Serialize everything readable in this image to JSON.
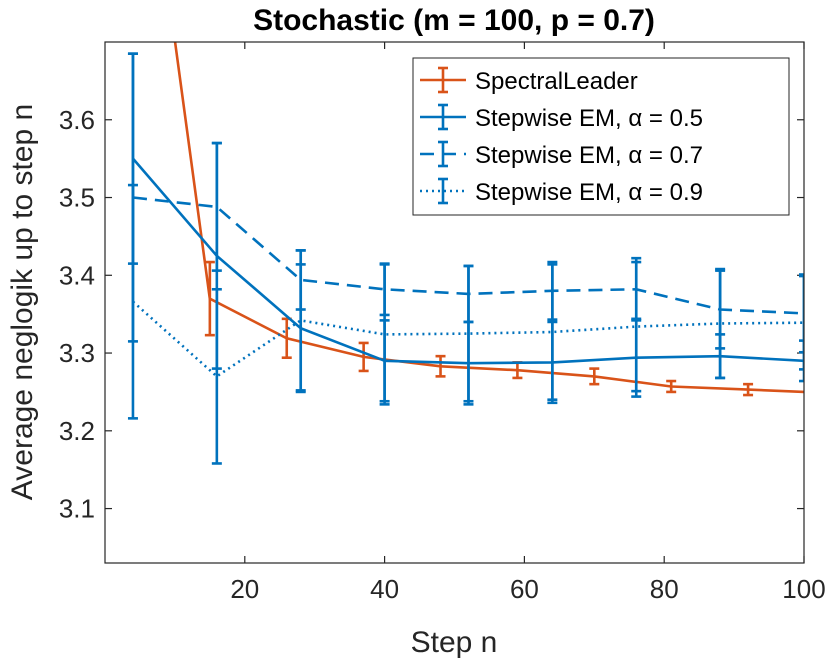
{
  "chart_data": {
    "type": "line",
    "title": "Stochastic (m = 100, p = 0.7)",
    "xlabel": "Step n",
    "ylabel": "Average neglogik up to step n",
    "xlim": [
      0,
      100
    ],
    "ylim": [
      3.03,
      3.7
    ],
    "xticks": [
      20,
      40,
      60,
      80,
      100
    ],
    "yticks": [
      3.1,
      3.2,
      3.3,
      3.4,
      3.5,
      3.6
    ],
    "grid": false,
    "legend_position": "top-right",
    "series": [
      {
        "name": "SpectralLeader",
        "color": "#D95319",
        "dash": "solid",
        "points": [
          {
            "x": 4,
            "y": 4.1,
            "err": 0
          },
          {
            "x": 15,
            "y": 3.37,
            "err": 0.047
          },
          {
            "x": 26,
            "y": 3.319,
            "err": 0.025
          },
          {
            "x": 37,
            "y": 3.295,
            "err": 0.018
          },
          {
            "x": 48,
            "y": 3.283,
            "err": 0.013
          },
          {
            "x": 59,
            "y": 3.278,
            "err": 0.01
          },
          {
            "x": 70,
            "y": 3.27,
            "err": 0.01
          },
          {
            "x": 81,
            "y": 3.257,
            "err": 0.007
          },
          {
            "x": 92,
            "y": 3.253,
            "err": 0.007
          },
          {
            "x": 100,
            "y": 3.25,
            "err": 0
          }
        ]
      },
      {
        "name": "Stepwise EM, α = 0.5",
        "color": "#0072BD",
        "dash": "solid",
        "points": [
          {
            "x": 4,
            "y": 3.55,
            "err": 0.135
          },
          {
            "x": 16,
            "y": 3.425,
            "err": 0.145
          },
          {
            "x": 28,
            "y": 3.332,
            "err": 0.082
          },
          {
            "x": 40,
            "y": 3.29,
            "err": 0.052
          },
          {
            "x": 52,
            "y": 3.287,
            "err": 0.053
          },
          {
            "x": 64,
            "y": 3.288,
            "err": 0.052
          },
          {
            "x": 76,
            "y": 3.294,
            "err": 0.05
          },
          {
            "x": 88,
            "y": 3.296,
            "err": 0.028
          },
          {
            "x": 100,
            "y": 3.29,
            "err": 0.026
          }
        ]
      },
      {
        "name": "Stepwise EM, α = 0.7",
        "color": "#0072BD",
        "dash": "dashed",
        "points": [
          {
            "x": 4,
            "y": 3.5,
            "err": 0.185
          },
          {
            "x": 16,
            "y": 3.488,
            "err": 0.082
          },
          {
            "x": 28,
            "y": 3.394,
            "err": 0.038
          },
          {
            "x": 40,
            "y": 3.382,
            "err": 0.033
          },
          {
            "x": 52,
            "y": 3.376,
            "err": 0.036
          },
          {
            "x": 64,
            "y": 3.38,
            "err": 0.037
          },
          {
            "x": 76,
            "y": 3.382,
            "err": 0.04
          },
          {
            "x": 88,
            "y": 3.356,
            "err": 0.05
          },
          {
            "x": 100,
            "y": 3.351,
            "err": 0.05
          }
        ]
      },
      {
        "name": "Stepwise EM, α = 0.9",
        "color": "#0072BD",
        "dash": "dotted",
        "points": [
          {
            "x": 4,
            "y": 3.366,
            "err": 0.15
          },
          {
            "x": 16,
            "y": 3.27,
            "err": 0.112
          },
          {
            "x": 28,
            "y": 3.342,
            "err": 0.09
          },
          {
            "x": 40,
            "y": 3.324,
            "err": 0.09
          },
          {
            "x": 52,
            "y": 3.325,
            "err": 0.087
          },
          {
            "x": 64,
            "y": 3.327,
            "err": 0.087
          },
          {
            "x": 76,
            "y": 3.334,
            "err": 0.083
          },
          {
            "x": 88,
            "y": 3.338,
            "err": 0.07
          },
          {
            "x": 100,
            "y": 3.339,
            "err": 0.06
          }
        ]
      }
    ]
  }
}
